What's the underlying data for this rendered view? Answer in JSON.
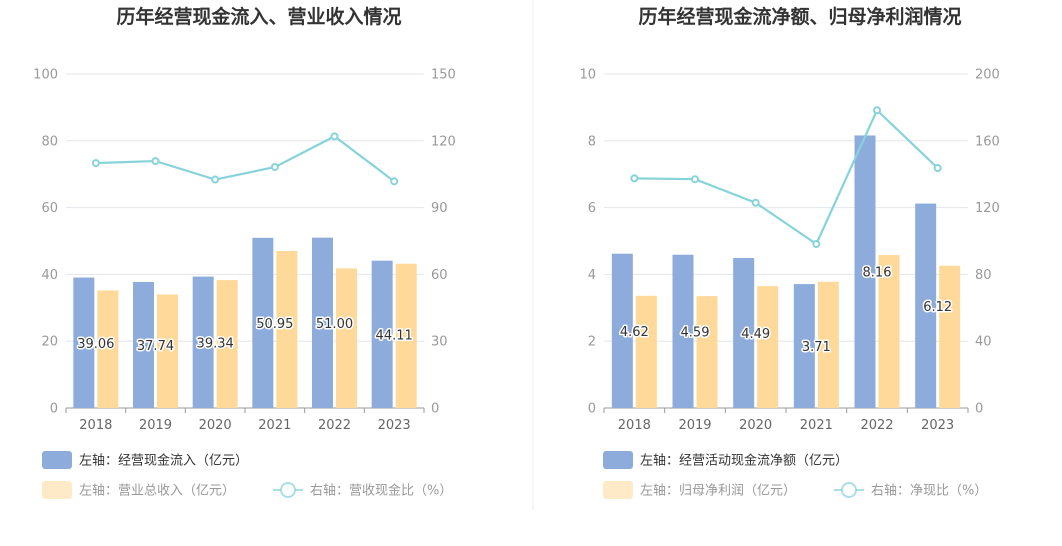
{
  "colors": {
    "bar_primary": "#8eacdb",
    "bar_secondary": "#ffd99a",
    "line": "#86d3da",
    "grid": "#e3e6ee",
    "axis": "#999999",
    "divider": "#eeeeee",
    "legend_active_text": "#333333",
    "legend_muted_text": "#999999"
  },
  "chart_data": [
    {
      "type": "bar",
      "title": "历年经营现金流入、营业收入情况",
      "categories": [
        "2018",
        "2019",
        "2020",
        "2021",
        "2022",
        "2023"
      ],
      "left_axis": {
        "ylim": [
          0,
          100
        ],
        "ticks": [
          "0",
          "20",
          "40",
          "60",
          "80",
          "100"
        ]
      },
      "right_axis": {
        "ylim": [
          0,
          150
        ],
        "ticks": [
          "0",
          "30",
          "60",
          "90",
          "120",
          "150"
        ]
      },
      "grid": true,
      "legend_position": "bottom",
      "series": [
        {
          "name": "左轴：经营现金流入（亿元）",
          "kind": "bar",
          "axis": "left",
          "color": "#8eacdb",
          "values": [
            39.06,
            37.74,
            39.34,
            50.95,
            51.0,
            44.11
          ],
          "labels": [
            "39.06",
            "37.74",
            "39.34",
            "50.95",
            "51.00",
            "44.11"
          ]
        },
        {
          "name": "左轴：营业总收入（亿元）",
          "kind": "bar",
          "axis": "left",
          "color": "#ffd99a",
          "values": [
            35.2,
            34.0,
            38.3,
            47.0,
            41.8,
            43.2
          ]
        },
        {
          "name": "右轴：营收现金比（%）",
          "kind": "line",
          "axis": "right",
          "color": "#86d3da",
          "values": [
            110.0,
            110.9,
            102.6,
            108.2,
            122.0,
            101.8
          ]
        }
      ]
    },
    {
      "type": "bar",
      "title": "历年经营现金流净额、归母净利润情况",
      "categories": [
        "2018",
        "2019",
        "2020",
        "2021",
        "2022",
        "2023"
      ],
      "left_axis": {
        "ylim": [
          0,
          10
        ],
        "ticks": [
          "0",
          "2",
          "4",
          "6",
          "8",
          "10"
        ]
      },
      "right_axis": {
        "ylim": [
          0,
          200
        ],
        "ticks": [
          "0",
          "40",
          "80",
          "120",
          "160",
          "200"
        ]
      },
      "grid": true,
      "legend_position": "bottom",
      "series": [
        {
          "name": "左轴：经营活动现金流净额（亿元）",
          "kind": "bar",
          "axis": "left",
          "color": "#8eacdb",
          "values": [
            4.62,
            4.59,
            4.49,
            3.71,
            8.16,
            6.12
          ],
          "labels": [
            "4.62",
            "4.59",
            "4.49",
            "3.71",
            "8.16",
            "6.12"
          ]
        },
        {
          "name": "左轴：归母净利润（亿元）",
          "kind": "bar",
          "axis": "left",
          "color": "#ffd99a",
          "values": [
            3.36,
            3.35,
            3.65,
            3.78,
            4.58,
            4.26
          ]
        },
        {
          "name": "右轴：净现比（%）",
          "kind": "line",
          "axis": "right",
          "color": "#86d3da",
          "values": [
            137.5,
            137.0,
            122.9,
            98.2,
            178.3,
            143.7
          ]
        }
      ]
    }
  ]
}
